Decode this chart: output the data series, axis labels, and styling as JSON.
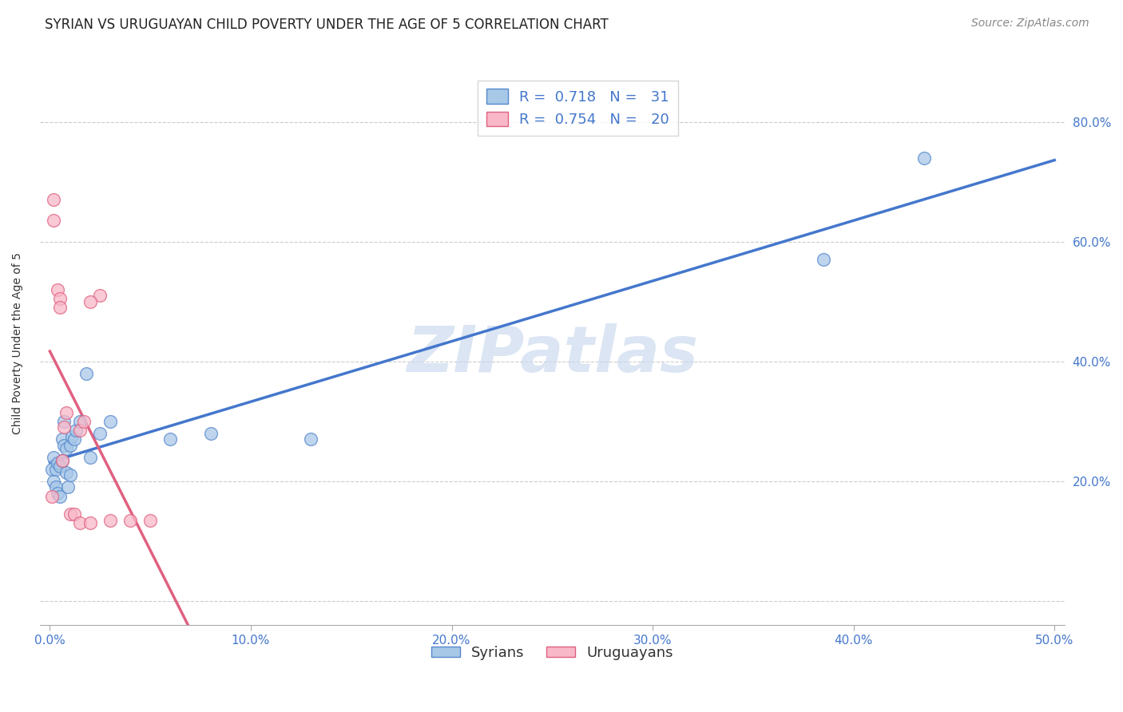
{
  "title": "SYRIAN VS URUGUAYAN CHILD POVERTY UNDER THE AGE OF 5 CORRELATION CHART",
  "source": "Source: ZipAtlas.com",
  "ylabel": "Child Poverty Under the Age of 5",
  "xlim": [
    -0.005,
    0.505
  ],
  "ylim": [
    -0.04,
    0.9
  ],
  "xtick_vals": [
    0.0,
    0.1,
    0.2,
    0.3,
    0.4,
    0.5
  ],
  "xtick_labels": [
    "0.0%",
    "10.0%",
    "20.0%",
    "30.0%",
    "40.0%",
    "50.0%"
  ],
  "ytick_vals": [
    0.0,
    0.2,
    0.4,
    0.6,
    0.8
  ],
  "ytick_labels": [
    "",
    "20.0%",
    "40.0%",
    "60.0%",
    "80.0%"
  ],
  "syrian_color": "#a8c8e8",
  "syrian_edge_color": "#5588cc",
  "uruguayan_color": "#f8b8c8",
  "uruguayan_edge_color": "#e06080",
  "syrian_line_color": "#4477cc",
  "uruguayan_line_color": "#e06080",
  "R_syrian": "0.718",
  "N_syrian": "31",
  "R_uruguayan": "0.754",
  "N_uruguayan": "20",
  "watermark": "ZIPatlas",
  "background_color": "#ffffff",
  "grid_color": "#cccccc",
  "title_fontsize": 12,
  "axis_label_fontsize": 10,
  "tick_label_fontsize": 11,
  "legend_fontsize": 13,
  "source_fontsize": 10,
  "tick_color": "#4477cc",
  "syrians_x": [
    0.001,
    0.002,
    0.002,
    0.003,
    0.003,
    0.004,
    0.004,
    0.005,
    0.005,
    0.006,
    0.006,
    0.007,
    0.007,
    0.008,
    0.008,
    0.009,
    0.01,
    0.01,
    0.011,
    0.012,
    0.013,
    0.015,
    0.018,
    0.02,
    0.025,
    0.03,
    0.06,
    0.08,
    0.13,
    0.385,
    0.435
  ],
  "syrians_y": [
    0.22,
    0.2,
    0.24,
    0.22,
    0.19,
    0.23,
    0.18,
    0.225,
    0.175,
    0.235,
    0.27,
    0.26,
    0.3,
    0.255,
    0.215,
    0.19,
    0.26,
    0.21,
    0.275,
    0.27,
    0.285,
    0.3,
    0.38,
    0.24,
    0.28,
    0.3,
    0.27,
    0.28,
    0.27,
    0.57,
    0.74
  ],
  "uruguayans_x": [
    0.001,
    0.002,
    0.002,
    0.004,
    0.005,
    0.005,
    0.006,
    0.007,
    0.008,
    0.01,
    0.012,
    0.015,
    0.02,
    0.025,
    0.03,
    0.04,
    0.05,
    0.015,
    0.017,
    0.02
  ],
  "uruguayans_y": [
    0.175,
    0.635,
    0.67,
    0.52,
    0.505,
    0.49,
    0.235,
    0.29,
    0.315,
    0.145,
    0.145,
    0.13,
    0.13,
    0.51,
    0.135,
    0.135,
    0.135,
    0.285,
    0.3,
    0.5
  ]
}
